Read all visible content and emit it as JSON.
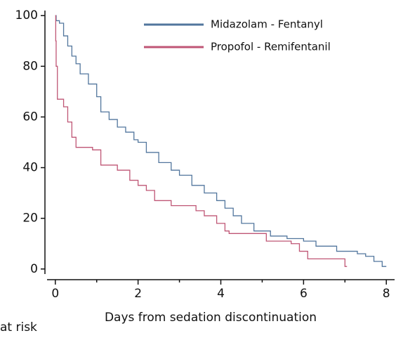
{
  "chart_data": {
    "type": "line",
    "step": "post",
    "xlabel": "Days from sedation discontinuation",
    "footnote": "at risk",
    "xlim": [
      -0.2,
      8.2
    ],
    "ylim": [
      -2,
      102
    ],
    "xticks": [
      0,
      2,
      4,
      6,
      8
    ],
    "xminorticks": [
      1,
      3,
      5,
      7
    ],
    "yticks": [
      0,
      20,
      40,
      60,
      80,
      100
    ],
    "legend": "upper right",
    "series": [
      {
        "name": "Midazolam - Fentanyl",
        "color": "#52769d",
        "x": [
          0,
          0.02,
          0.1,
          0.2,
          0.3,
          0.4,
          0.5,
          0.6,
          0.8,
          1.0,
          1.1,
          1.3,
          1.5,
          1.7,
          1.9,
          2.0,
          2.2,
          2.5,
          2.8,
          3.0,
          3.3,
          3.6,
          3.9,
          4.1,
          4.3,
          4.5,
          4.8,
          5.2,
          5.6,
          6.0,
          6.3,
          6.8,
          7.3,
          7.5,
          7.7,
          7.9,
          8.0
        ],
        "values": [
          100,
          98,
          97,
          92,
          88,
          84,
          81,
          77,
          73,
          68,
          62,
          59,
          56,
          54,
          51,
          50,
          46,
          42,
          39,
          37,
          33,
          30,
          27,
          24,
          21,
          18,
          15,
          13,
          12,
          11,
          9,
          7,
          6,
          5,
          3,
          1,
          1
        ]
      },
      {
        "name": "Propofol - Remifentanil",
        "color": "#bf5675",
        "x": [
          0,
          0.01,
          0.02,
          0.05,
          0.2,
          0.3,
          0.4,
          0.5,
          0.9,
          1.1,
          1.5,
          1.8,
          2.0,
          2.2,
          2.4,
          2.8,
          3.4,
          3.6,
          3.9,
          4.1,
          4.2,
          5.0,
          5.1,
          5.7,
          5.9,
          6.1,
          6.8,
          7.0,
          7.05
        ],
        "values": [
          100,
          90,
          80,
          67,
          64,
          58,
          52,
          48,
          47,
          41,
          39,
          35,
          33,
          31,
          27,
          25,
          23,
          21,
          18,
          15,
          14,
          14,
          11,
          10,
          7,
          4,
          4,
          1,
          1
        ]
      }
    ]
  }
}
